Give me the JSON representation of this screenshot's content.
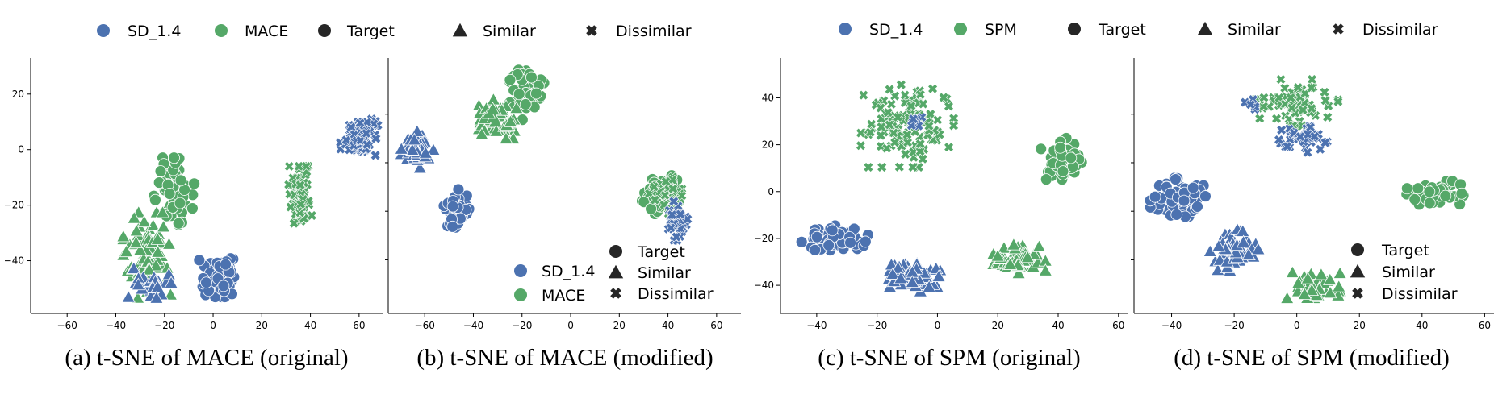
{
  "legend_colors": {
    "SD_1.4": "#4c72b0",
    "MACE": "#55a868",
    "SPM": "#55a868",
    "marker": "#262626"
  },
  "chart_data": [
    {
      "type": "scatter",
      "caption": "(a) t-SNE of MACE (original)",
      "top_legend": [
        "SD_1.4",
        "MACE",
        "Target",
        "Similar",
        "Dissimilar"
      ],
      "inner_legend": [],
      "xlim": [
        -75,
        70
      ],
      "ylim": [
        -59,
        33
      ],
      "xticks": [
        -60,
        -40,
        -20,
        0,
        20,
        40,
        60
      ],
      "yticks": [
        20,
        0,
        -20,
        -40
      ],
      "clusters": [
        {
          "series": "SD_1.4",
          "marker": "circle",
          "cx": 2,
          "cy": -46,
          "sx": 3.5,
          "sy": 3.2,
          "n": 80
        },
        {
          "series": "MACE",
          "marker": "circle",
          "cx": -16,
          "cy": -15,
          "sx": 4,
          "sy": 5.5,
          "n": 55
        },
        {
          "series": "MACE",
          "marker": "triangle",
          "cx": -27,
          "cy": -38,
          "sx": 4.5,
          "sy": 7,
          "n": 90
        },
        {
          "series": "SD_1.4",
          "marker": "triangle",
          "cx": -26,
          "cy": -48,
          "sx": 4,
          "sy": 3,
          "n": 25
        },
        {
          "series": "MACE",
          "marker": "x",
          "cx": 36,
          "cy": -17,
          "sx": 2.5,
          "sy": 5,
          "n": 70
        },
        {
          "series": "SD_1.4",
          "marker": "x",
          "cx": 60,
          "cy": 4,
          "sx": 3.5,
          "sy": 3.2,
          "n": 85
        }
      ]
    },
    {
      "type": "scatter",
      "caption": "(b) t-SNE of MACE (modified)",
      "top_legend": [],
      "inner_legend": [
        "SD_1.4",
        "MACE",
        "Target",
        "Similar",
        "Dissimilar"
      ],
      "xlim": [
        -75,
        70
      ],
      "ylim": [
        -59,
        33
      ],
      "xticks": [
        -60,
        -40,
        -20,
        0,
        20,
        40,
        60
      ],
      "yticks": [],
      "clusters": [
        {
          "series": "MACE",
          "marker": "circle",
          "cx": -18,
          "cy": 20,
          "sx": 3.2,
          "sy": 4.2,
          "n": 45
        },
        {
          "series": "MACE",
          "marker": "triangle",
          "cx": -30,
          "cy": 11,
          "sx": 3.5,
          "sy": 3.2,
          "n": 60
        },
        {
          "series": "SD_1.4",
          "marker": "triangle",
          "cx": -63,
          "cy": 0,
          "sx": 3,
          "sy": 3,
          "n": 55
        },
        {
          "series": "SD_1.4",
          "marker": "circle",
          "cx": -47,
          "cy": -22,
          "sx": 2.5,
          "sy": 3.5,
          "n": 40
        },
        {
          "series": "MACE",
          "marker": "circle",
          "cx": 37,
          "cy": -17,
          "sx": 3.5,
          "sy": 3.5,
          "n": 45
        },
        {
          "series": "MACE",
          "marker": "x",
          "cx": 38,
          "cy": -16,
          "sx": 3.5,
          "sy": 3.5,
          "n": 40
        },
        {
          "series": "SD_1.4",
          "marker": "x",
          "cx": 44,
          "cy": -25,
          "sx": 2.5,
          "sy": 3.5,
          "n": 45
        }
      ]
    },
    {
      "type": "scatter",
      "caption": "(c) t-SNE of SPM (original)",
      "top_legend": [
        "SD_1.4",
        "SPM",
        "Target",
        "Similar",
        "Dissimilar"
      ],
      "inner_legend": [],
      "xlim": [
        -52,
        63
      ],
      "ylim": [
        -52,
        57
      ],
      "xticks": [
        -40,
        -20,
        0,
        20,
        40,
        60
      ],
      "yticks": [
        40,
        20,
        0,
        -20,
        -40
      ],
      "clusters": [
        {
          "series": "SPM",
          "marker": "x",
          "cx": -10,
          "cy": 28,
          "sx": 7,
          "sy": 8,
          "n": 120
        },
        {
          "series": "SD_1.4",
          "marker": "x",
          "cx": -8,
          "cy": 30,
          "sx": 1.5,
          "sy": 1.5,
          "n": 8
        },
        {
          "series": "SPM",
          "marker": "circle",
          "cx": 42,
          "cy": 14,
          "sx": 3.5,
          "sy": 4,
          "n": 55
        },
        {
          "series": "SD_1.4",
          "marker": "circle",
          "cx": -34,
          "cy": -20,
          "sx": 5,
          "sy": 2.5,
          "n": 70
        },
        {
          "series": "SD_1.4",
          "marker": "triangle",
          "cx": -9,
          "cy": -36,
          "sx": 4.5,
          "sy": 3,
          "n": 70
        },
        {
          "series": "SPM",
          "marker": "triangle",
          "cx": 27,
          "cy": -29,
          "sx": 4,
          "sy": 3,
          "n": 65
        }
      ]
    },
    {
      "type": "scatter",
      "caption": "(d) t-SNE of SPM (modified)",
      "top_legend": [],
      "inner_legend": [
        "Target",
        "Similar",
        "Dissimilar"
      ],
      "xlim": [
        -52,
        63
      ],
      "ylim": [
        -52,
        57
      ],
      "xticks": [
        -40,
        -20,
        0,
        20,
        40,
        60
      ],
      "yticks": [],
      "clusters": [
        {
          "series": "SPM",
          "marker": "x",
          "cx": 0,
          "cy": 38,
          "sx": 6,
          "sy": 4.5,
          "n": 70
        },
        {
          "series": "SD_1.4",
          "marker": "x",
          "cx": 2,
          "cy": 23,
          "sx": 3.5,
          "sy": 3,
          "n": 40
        },
        {
          "series": "SD_1.4",
          "marker": "x",
          "cx": -14,
          "cy": 36,
          "sx": 1.5,
          "sy": 1.5,
          "n": 6
        },
        {
          "series": "SPM",
          "marker": "circle",
          "cx": 45,
          "cy": -1,
          "sx": 4.5,
          "sy": 2.5,
          "n": 60
        },
        {
          "series": "SD_1.4",
          "marker": "circle",
          "cx": -38,
          "cy": -3,
          "sx": 4,
          "sy": 4,
          "n": 75
        },
        {
          "series": "SD_1.4",
          "marker": "triangle",
          "cx": -20,
          "cy": -25,
          "sx": 3.5,
          "sy": 4,
          "n": 60
        },
        {
          "series": "SPM",
          "marker": "triangle",
          "cx": 5,
          "cy": -40,
          "sx": 4,
          "sy": 2.5,
          "n": 50
        }
      ]
    }
  ]
}
